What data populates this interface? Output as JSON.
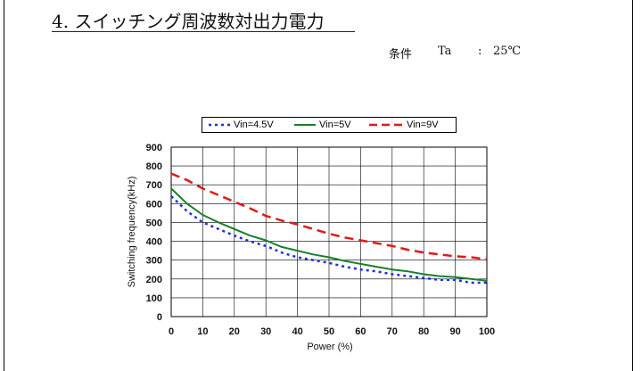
{
  "heading": {
    "text": "4. スイッチング周波数対出力電力"
  },
  "conditions": {
    "label": "条件",
    "param": "Ta",
    "separator": ":",
    "value": "25℃"
  },
  "colors": {
    "series_4_5v": "#1f2fd8",
    "series_5v": "#1a7f2a",
    "series_9v": "#e01818",
    "grid": "#000000"
  },
  "chart_data": {
    "type": "line",
    "title": "",
    "xlabel": "Power (%)",
    "ylabel": "Switching frequency(kHz)",
    "xlim": [
      0,
      100
    ],
    "ylim": [
      0,
      900
    ],
    "xticks": [
      0,
      10,
      20,
      30,
      40,
      50,
      60,
      70,
      80,
      90,
      100
    ],
    "yticks": [
      0,
      100,
      200,
      300,
      400,
      500,
      600,
      700,
      800,
      900
    ],
    "grid": true,
    "legend_position": "top",
    "x": [
      0,
      5,
      10,
      15,
      20,
      25,
      30,
      35,
      40,
      45,
      50,
      55,
      60,
      65,
      70,
      75,
      80,
      85,
      90,
      95,
      100
    ],
    "series": [
      {
        "name": "Vin=4.5V",
        "style": "dotted",
        "values": [
          640,
          560,
          500,
          465,
          430,
          400,
          375,
          340,
          315,
          300,
          285,
          265,
          250,
          240,
          225,
          215,
          205,
          195,
          195,
          180,
          180
        ]
      },
      {
        "name": "Vin=5V",
        "style": "solid",
        "values": [
          680,
          600,
          540,
          500,
          465,
          430,
          405,
          370,
          350,
          330,
          315,
          295,
          280,
          265,
          250,
          240,
          225,
          215,
          210,
          200,
          190
        ]
      },
      {
        "name": "Vin=9V",
        "style": "dashed",
        "values": [
          760,
          725,
          680,
          645,
          610,
          575,
          535,
          510,
          490,
          465,
          440,
          420,
          405,
          390,
          375,
          355,
          340,
          330,
          320,
          315,
          305
        ]
      }
    ]
  }
}
